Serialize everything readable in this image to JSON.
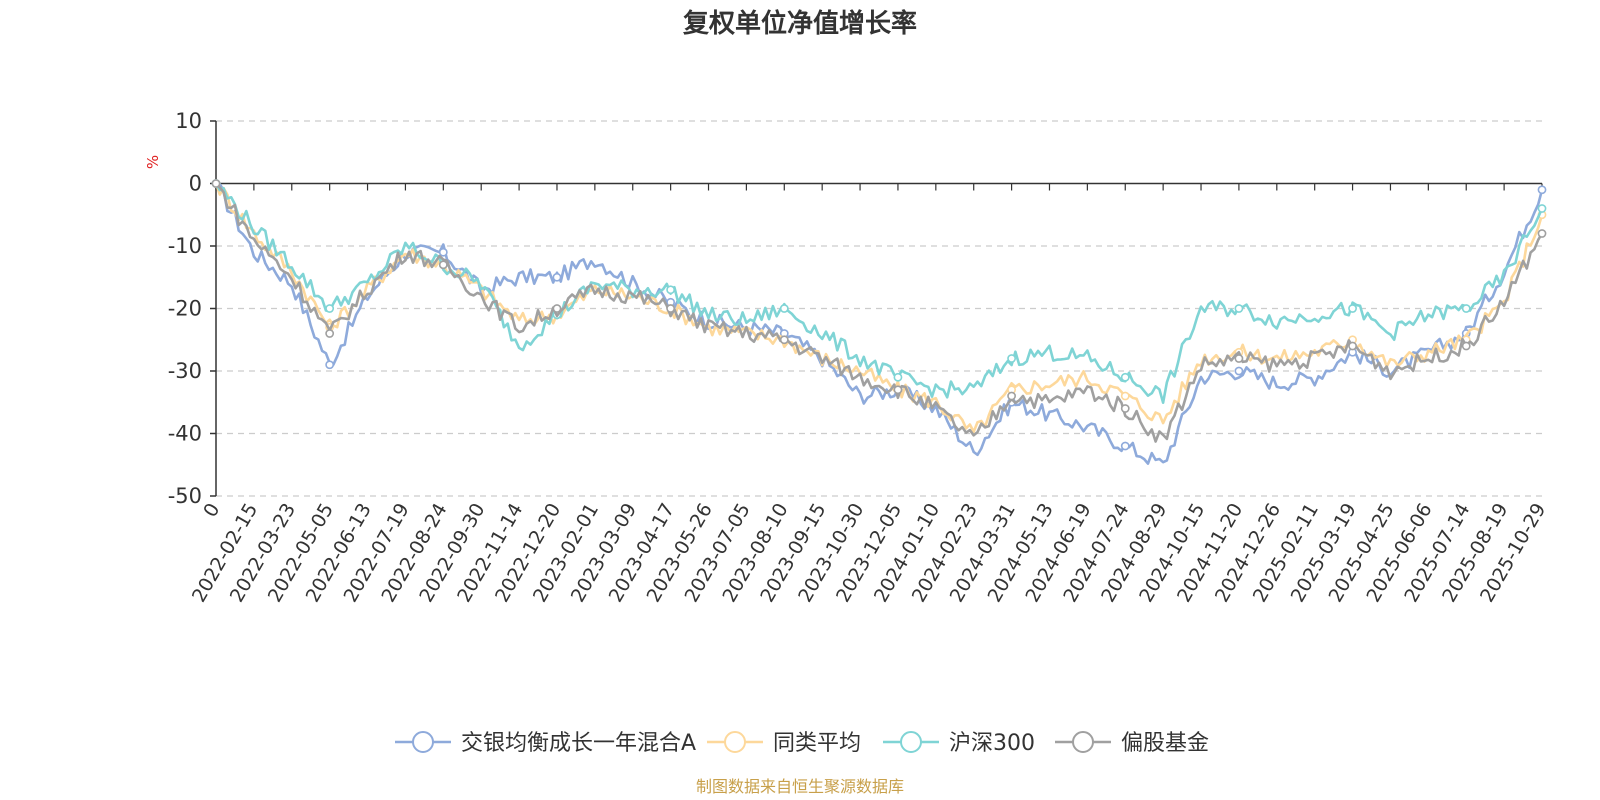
{
  "chart_data": {
    "type": "line",
    "title": "复权单位净值增长率",
    "ylabel": "%",
    "xlabel": "",
    "ylim": [
      -50,
      10
    ],
    "yticks": [
      10,
      0,
      -10,
      -20,
      -30,
      -40,
      -50
    ],
    "grid": true,
    "legend_position": "bottom-center",
    "x": [
      "0",
      "2022-02-15",
      "2022-03-23",
      "2022-05-05",
      "2022-06-13",
      "2022-07-19",
      "2022-08-24",
      "2022-09-30",
      "2022-11-14",
      "2022-12-20",
      "2023-02-01",
      "2023-03-09",
      "2023-04-17",
      "2023-05-26",
      "2023-07-05",
      "2023-08-10",
      "2023-09-15",
      "2023-10-30",
      "2023-12-05",
      "2024-01-10",
      "2024-02-23",
      "2024-03-31",
      "2024-05-13",
      "2024-06-19",
      "2024-07-24",
      "2024-08-29",
      "2024-10-15",
      "2024-11-20",
      "2024-12-26",
      "2025-02-11",
      "2025-03-19",
      "2025-04-25",
      "2025-06-06",
      "2025-07-14",
      "2025-08-19",
      "2025-10-29"
    ],
    "series": [
      {
        "name": "交银均衡成长一年混合A",
        "color": "#8eaadb",
        "values": [
          0,
          -11,
          -16,
          -29,
          -18,
          -11,
          -11,
          -17,
          -15,
          -15,
          -12,
          -16,
          -19,
          -22,
          -23,
          -24,
          -28,
          -34,
          -33,
          -36,
          -43,
          -35,
          -37,
          -39,
          -42,
          -45,
          -31,
          -30,
          -32,
          -31,
          -27,
          -30,
          -27,
          -24,
          -14,
          -1
        ]
      },
      {
        "name": "同类平均",
        "color": "#fdd89b",
        "values": [
          0,
          -8,
          -14,
          -23,
          -17,
          -11,
          -13,
          -17,
          -22,
          -21,
          -17,
          -18,
          -20,
          -23,
          -24,
          -25,
          -28,
          -30,
          -33,
          -35,
          -40,
          -33,
          -32,
          -31,
          -34,
          -38,
          -28,
          -27,
          -28,
          -27,
          -25,
          -29,
          -27,
          -25,
          -19,
          -5
        ]
      },
      {
        "name": "沪深300",
        "color": "#7fd4d5",
        "values": [
          0,
          -7,
          -13,
          -20,
          -16,
          -10,
          -13,
          -16,
          -26,
          -21,
          -16,
          -17,
          -17,
          -21,
          -22,
          -20,
          -24,
          -28,
          -31,
          -33,
          -33,
          -28,
          -27,
          -28,
          -31,
          -34,
          -20,
          -20,
          -22,
          -21,
          -20,
          -24,
          -21,
          -20,
          -15,
          -4
        ]
      },
      {
        "name": "偏股基金",
        "color": "#a0a0a0",
        "values": [
          0,
          -9,
          -15,
          -24,
          -17,
          -11,
          -13,
          -18,
          -23,
          -20,
          -17,
          -18,
          -20,
          -23,
          -24,
          -25,
          -28,
          -31,
          -33,
          -36,
          -41,
          -34,
          -35,
          -33,
          -36,
          -41,
          -29,
          -28,
          -29,
          -28,
          -26,
          -30,
          -28,
          -26,
          -19,
          -8
        ]
      }
    ]
  },
  "source_note": "制图数据来自恒生聚源数据库"
}
